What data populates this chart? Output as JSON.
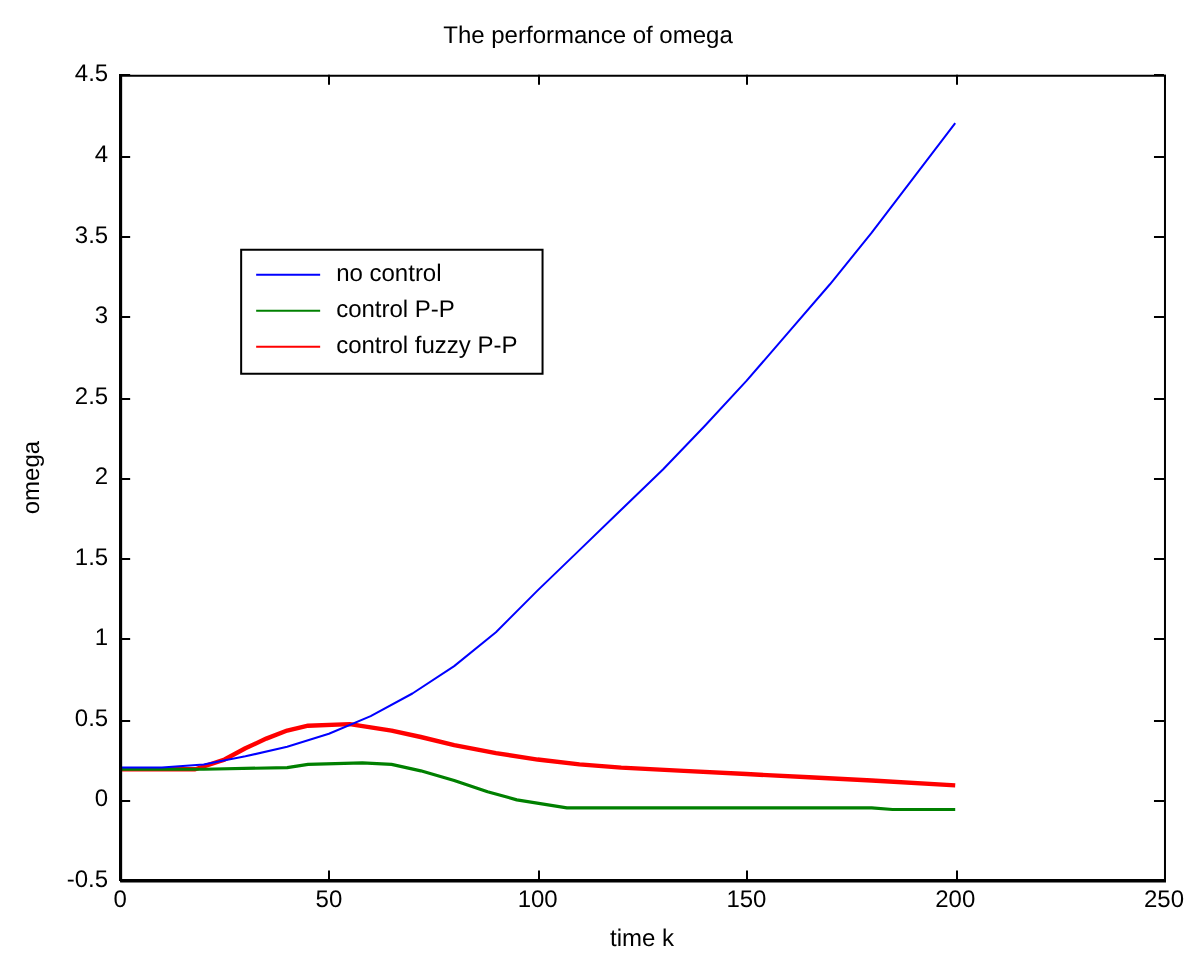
{
  "chart_data": {
    "type": "line",
    "title": "The performance of omega",
    "xlabel": "time k",
    "ylabel": "omega",
    "xlim": [
      0,
      250
    ],
    "xticks": [
      0,
      50,
      100,
      150,
      200,
      250
    ],
    "ylim": [
      -0.5,
      4.5
    ],
    "yticks": [
      -0.5,
      0,
      0.5,
      1,
      1.5,
      2,
      2.5,
      3,
      3.5,
      4,
      4.5
    ],
    "grid": false,
    "legend": "top left",
    "marker": "none",
    "line_style": "solid",
    "series": [
      {
        "name": "no control",
        "color": "#0000ff",
        "x": [
          0,
          10,
          20,
          30,
          40,
          50,
          60,
          70,
          80,
          90,
          100,
          110,
          120,
          130,
          140,
          150,
          160,
          170,
          180,
          190,
          200
        ],
        "values": [
          0.2,
          0.2,
          0.22,
          0.27,
          0.33,
          0.41,
          0.52,
          0.66,
          0.83,
          1.04,
          1.3,
          1.55,
          1.8,
          2.05,
          2.32,
          2.6,
          2.9,
          3.2,
          3.52,
          3.86,
          4.2
        ]
      },
      {
        "name": "control P-P",
        "color": "#008000",
        "x": [
          0,
          20,
          40,
          45,
          58,
          65,
          72,
          80,
          88,
          95,
          107,
          180,
          185,
          200
        ],
        "values": [
          0.19,
          0.19,
          0.2,
          0.22,
          0.23,
          0.22,
          0.18,
          0.12,
          0.05,
          0.0,
          -0.05,
          -0.05,
          -0.06,
          -0.06
        ]
      },
      {
        "name": "control fuzzy P-P",
        "color": "#ff0000",
        "x": [
          0,
          18,
          25,
          30,
          35,
          40,
          45,
          55,
          65,
          72,
          80,
          90,
          100,
          110,
          120,
          135,
          150,
          165,
          180,
          200
        ],
        "values": [
          0.19,
          0.19,
          0.25,
          0.32,
          0.38,
          0.43,
          0.46,
          0.47,
          0.43,
          0.39,
          0.34,
          0.29,
          0.25,
          0.22,
          0.2,
          0.18,
          0.16,
          0.14,
          0.12,
          0.09
        ]
      }
    ]
  }
}
